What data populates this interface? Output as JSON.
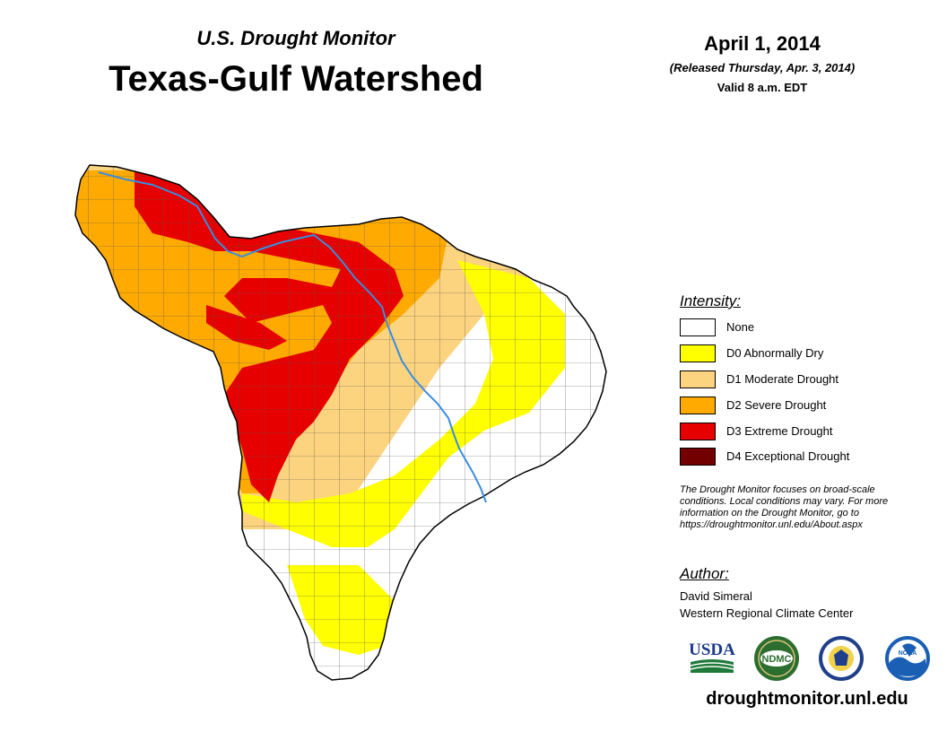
{
  "header": {
    "subtitle": "U.S. Drought Monitor",
    "title": "Texas-Gulf Watershed",
    "date": "April 1, 2014",
    "released": "(Released Thursday, Apr. 3, 2014)",
    "valid": "Valid 8 a.m. EDT"
  },
  "legend": {
    "heading": "Intensity:",
    "items": [
      {
        "label": "None",
        "color": "#ffffff"
      },
      {
        "label": "D0 Abnormally Dry",
        "color": "#ffff00"
      },
      {
        "label": "D1 Moderate Drought",
        "color": "#fcd37f"
      },
      {
        "label": "D2 Severe Drought",
        "color": "#ffaa00"
      },
      {
        "label": "D3 Extreme Drought",
        "color": "#e60000"
      },
      {
        "label": "D4 Exceptional Drought",
        "color": "#730000"
      }
    ]
  },
  "note": {
    "line1": "The Drought Monitor focuses on broad-scale",
    "line2": "conditions. Local conditions may vary. For more",
    "line3": "information on the Drought Monitor, go to",
    "line4": "https://droughtmonitor.unl.edu/About.aspx"
  },
  "author": {
    "heading": "Author:",
    "name": "David Simeral",
    "org": "Western Regional Climate Center"
  },
  "logos": {
    "usda": "USDA",
    "ndmc": "NDMC",
    "noaa": "NOAA"
  },
  "footer": {
    "website": "droughtmonitor.unl.edu"
  },
  "colors": {
    "river": "#3a8dde",
    "county_lines": "#555555"
  }
}
